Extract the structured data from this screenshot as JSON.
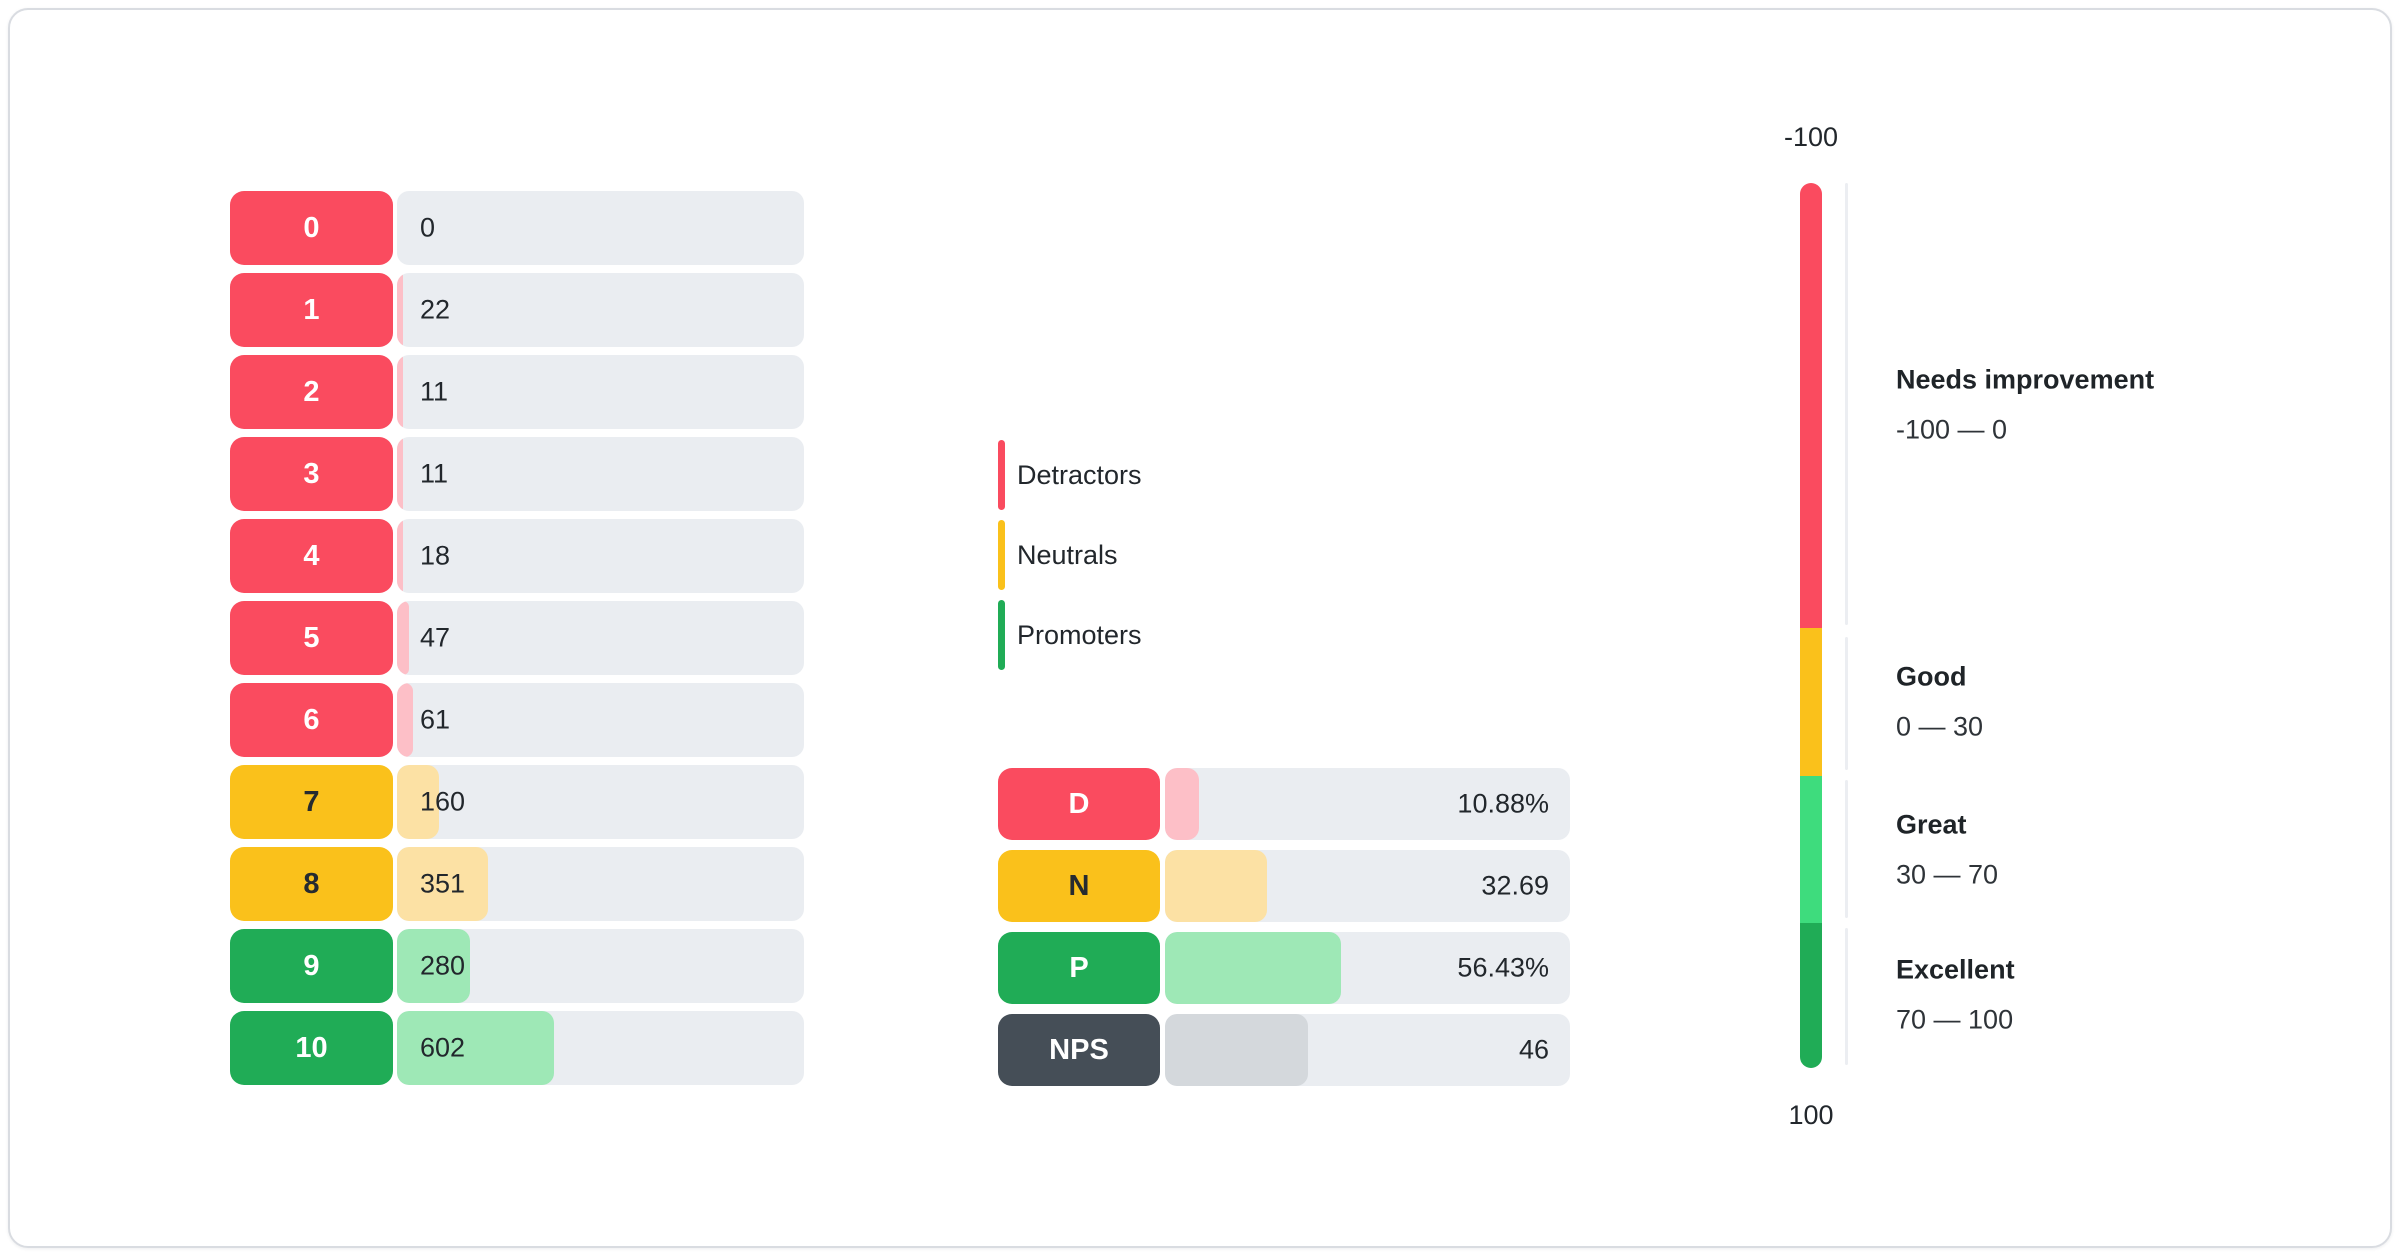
{
  "theme": {
    "red": "#FA4B5F",
    "red_light": "#FDBFC7",
    "yellow": "#FAC11B",
    "yellow_light": "#FCE1A4",
    "green": "#20AC56",
    "green_light": "#9EE8B6",
    "green_bright": "#3EDC7D",
    "slate": "#454E57",
    "slate_light": "#D4D8DC",
    "track": "#EAEDF1"
  },
  "score_rows": [
    {
      "score": "0",
      "count": "0",
      "fill_pct": 0,
      "chip_color": "red",
      "fill_color": "red_light",
      "chip_text": "light"
    },
    {
      "score": "1",
      "count": "22",
      "fill_pct": 1.41,
      "chip_color": "red",
      "fill_color": "red_light",
      "chip_text": "light"
    },
    {
      "score": "2",
      "count": "11",
      "fill_pct": 0.7,
      "chip_color": "red",
      "fill_color": "red_light",
      "chip_text": "light"
    },
    {
      "score": "3",
      "count": "11",
      "fill_pct": 0.7,
      "chip_color": "red",
      "fill_color": "red_light",
      "chip_text": "light"
    },
    {
      "score": "4",
      "count": "18",
      "fill_pct": 1.15,
      "chip_color": "red",
      "fill_color": "red_light",
      "chip_text": "light"
    },
    {
      "score": "5",
      "count": "47",
      "fill_pct": 3.01,
      "chip_color": "red",
      "fill_color": "red_light",
      "chip_text": "light"
    },
    {
      "score": "6",
      "count": "61",
      "fill_pct": 3.9,
      "chip_color": "red",
      "fill_color": "red_light",
      "chip_text": "light"
    },
    {
      "score": "7",
      "count": "160",
      "fill_pct": 10.24,
      "chip_color": "yellow",
      "fill_color": "yellow_light",
      "chip_text": "dark"
    },
    {
      "score": "8",
      "count": "351",
      "fill_pct": 22.46,
      "chip_color": "yellow",
      "fill_color": "yellow_light",
      "chip_text": "dark"
    },
    {
      "score": "9",
      "count": "280",
      "fill_pct": 17.91,
      "chip_color": "green",
      "fill_color": "green_light",
      "chip_text": "light"
    },
    {
      "score": "10",
      "count": "602",
      "fill_pct": 38.52,
      "chip_color": "green",
      "fill_color": "green_light",
      "chip_text": "light"
    }
  ],
  "legend": {
    "items": [
      {
        "label": "Detractors",
        "color": "red"
      },
      {
        "label": "Neutrals",
        "color": "yellow"
      },
      {
        "label": "Promoters",
        "color": "green"
      }
    ]
  },
  "summary_rows": [
    {
      "label": "D",
      "value": "10.88%",
      "fill_pct": 8.37,
      "chip_color": "red",
      "fill_color": "red_light",
      "chip_text": "light"
    },
    {
      "label": "N",
      "value": "32.69",
      "fill_pct": 25.15,
      "chip_color": "yellow",
      "fill_color": "yellow_light",
      "chip_text": "dark"
    },
    {
      "label": "P",
      "value": "56.43%",
      "fill_pct": 43.41,
      "chip_color": "green",
      "fill_color": "green_light",
      "chip_text": "light"
    },
    {
      "label": "NPS",
      "value": "46",
      "fill_pct": 35.38,
      "chip_color": "slate",
      "fill_color": "slate_light",
      "chip_text": "light"
    }
  ],
  "gauge": {
    "top_label": "-100",
    "bottom_label": "100",
    "segments": [
      {
        "name": "Needs improvement",
        "range": "-100 — 0",
        "height_pct": 50.3,
        "color": "red"
      },
      {
        "name": "Good",
        "range": "0 — 30",
        "height_pct": 16.7,
        "color": "yellow"
      },
      {
        "name": "Great",
        "range": "30 — 70",
        "height_pct": 16.6,
        "color": "green_bright"
      },
      {
        "name": "Excellent",
        "range": "70 — 100",
        "height_pct": 16.4,
        "color": "green"
      }
    ]
  },
  "chart_data": [
    {
      "type": "bar",
      "orientation": "horizontal",
      "title": "",
      "categories": [
        "0",
        "1",
        "2",
        "3",
        "4",
        "5",
        "6",
        "7",
        "8",
        "9",
        "10"
      ],
      "values": [
        0,
        22,
        11,
        11,
        18,
        47,
        61,
        160,
        351,
        280,
        602
      ],
      "groups": {
        "detractors": [
          "0",
          "1",
          "2",
          "3",
          "4",
          "5",
          "6"
        ],
        "neutrals": [
          "7",
          "8"
        ],
        "promoters": [
          "9",
          "10"
        ]
      }
    },
    {
      "type": "bar",
      "orientation": "horizontal",
      "title": "",
      "categories": [
        "D",
        "N",
        "P",
        "NPS"
      ],
      "values": [
        10.88,
        32.69,
        56.43,
        46
      ],
      "value_labels": [
        "10.88%",
        "32.69",
        "56.43%",
        "46"
      ]
    },
    {
      "type": "gauge",
      "orientation": "vertical",
      "min": -100,
      "max": 100,
      "bands": [
        {
          "label": "Needs improvement",
          "from": -100,
          "to": 0
        },
        {
          "label": "Good",
          "from": 0,
          "to": 30
        },
        {
          "label": "Great",
          "from": 30,
          "to": 70
        },
        {
          "label": "Excellent",
          "from": 70,
          "to": 100
        }
      ]
    }
  ]
}
